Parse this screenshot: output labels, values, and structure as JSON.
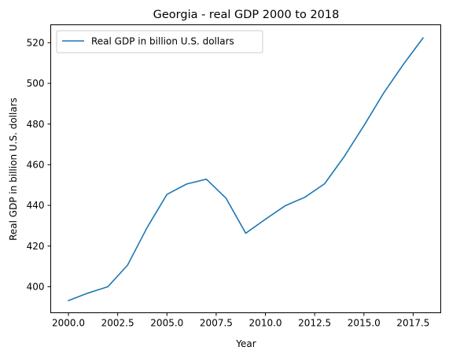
{
  "chart_data": {
    "type": "line",
    "title": "Georgia - real GDP 2000 to 2018",
    "xlabel": "Year",
    "ylabel": "Real GDP in billion U.S. dollars",
    "xlim": [
      1999.1,
      2018.9
    ],
    "ylim": [
      387.2,
      528.8
    ],
    "xticks": [
      2000.0,
      2002.5,
      2005.0,
      2007.5,
      2010.0,
      2012.5,
      2015.0,
      2017.5
    ],
    "xtick_labels": [
      "2000.0",
      "2002.5",
      "2005.0",
      "2007.5",
      "2010.0",
      "2012.5",
      "2015.0",
      "2017.5"
    ],
    "yticks": [
      400,
      420,
      440,
      460,
      480,
      500,
      520
    ],
    "ytick_labels": [
      "400",
      "420",
      "440",
      "460",
      "480",
      "500",
      "520"
    ],
    "grid": false,
    "legend_position": "top-left",
    "series": [
      {
        "name": "Real GDP in billion U.S. dollars",
        "color": "#1f77b4",
        "x": [
          2000,
          2001,
          2002,
          2003,
          2004,
          2005,
          2006,
          2007,
          2008,
          2009,
          2010,
          2011,
          2012,
          2013,
          2014,
          2015,
          2016,
          2017,
          2018
        ],
        "y": [
          393.2,
          396.9,
          400.0,
          410.6,
          429.2,
          445.4,
          450.5,
          452.9,
          443.5,
          426.3,
          433.2,
          439.8,
          444.0,
          450.6,
          464.0,
          479.2,
          495.2,
          509.3,
          522.3
        ]
      }
    ]
  }
}
